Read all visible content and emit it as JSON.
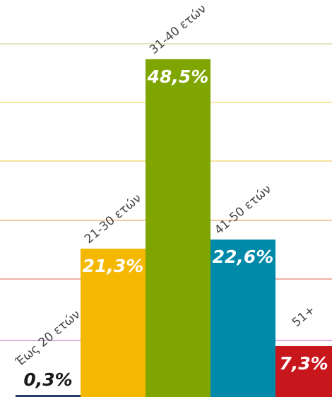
{
  "chart_data": {
    "type": "bar",
    "categories": [
      "Έως 20 ετών",
      "21-30 ετών",
      "31-40 ετών",
      "41-50 ετών",
      "51+"
    ],
    "values": [
      0.3,
      21.3,
      48.5,
      22.6,
      7.3
    ],
    "value_labels": [
      "0,3%",
      "21,3%",
      "48,5%",
      "22,6%",
      "7,3%"
    ],
    "colors": [
      "#1f3864",
      "#f5b800",
      "#7fa600",
      "#0089a8",
      "#c8161d"
    ],
    "ylim": [
      0,
      57
    ]
  }
}
